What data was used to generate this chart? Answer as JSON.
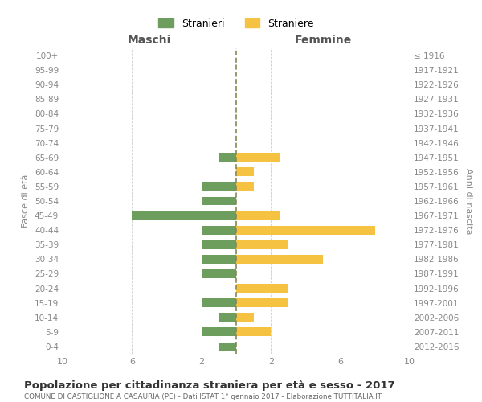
{
  "age_groups": [
    "100+",
    "95-99",
    "90-94",
    "85-89",
    "80-84",
    "75-79",
    "70-74",
    "65-69",
    "60-64",
    "55-59",
    "50-54",
    "45-49",
    "40-44",
    "35-39",
    "30-34",
    "25-29",
    "20-24",
    "15-19",
    "10-14",
    "5-9",
    "0-4"
  ],
  "birth_years": [
    "≤ 1916",
    "1917-1921",
    "1922-1926",
    "1927-1931",
    "1932-1936",
    "1937-1941",
    "1942-1946",
    "1947-1951",
    "1952-1956",
    "1957-1961",
    "1962-1966",
    "1967-1971",
    "1972-1976",
    "1977-1981",
    "1982-1986",
    "1987-1991",
    "1992-1996",
    "1997-2001",
    "2002-2006",
    "2007-2011",
    "2012-2016"
  ],
  "males": [
    0,
    0,
    0,
    0,
    0,
    0,
    0,
    1,
    0,
    2,
    2,
    6,
    2,
    2,
    2,
    2,
    0,
    2,
    1,
    2,
    1
  ],
  "females": [
    0,
    0,
    0,
    0,
    0,
    0,
    0,
    2.5,
    1,
    1,
    0,
    2.5,
    8,
    3,
    5,
    0,
    3,
    3,
    1,
    2,
    0
  ],
  "male_color": "#6d9e5e",
  "female_color": "#f5c242",
  "title": "Popolazione per cittadinanza straniera per età e sesso - 2017",
  "subtitle": "COMUNE DI CASTIGLIONE A CASAURIA (PE) - Dati ISTAT 1° gennaio 2017 - Elaborazione TUTTITALIA.IT",
  "ylabel_left": "Fasce di età",
  "ylabel_right": "Anni di nascita",
  "xlabel_left": "Maschi",
  "xlabel_right": "Femmine",
  "xlim": 10,
  "legend_stranieri": "Stranieri",
  "legend_straniere": "Straniere",
  "bg_color": "#ffffff",
  "grid_color": "#cccccc",
  "text_color": "#888888",
  "title_color": "#333333",
  "subtitle_color": "#666666",
  "header_color": "#555555",
  "dashed_line_color": "#888855"
}
